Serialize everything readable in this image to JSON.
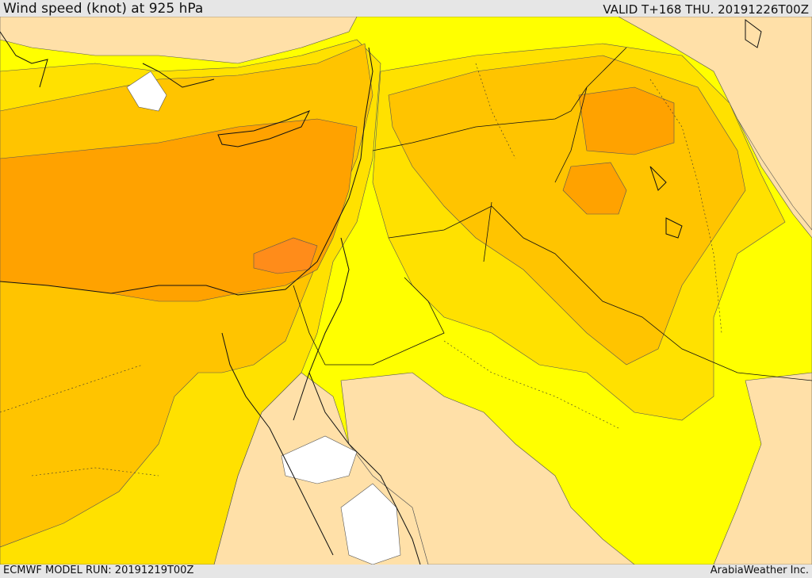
{
  "header": {
    "title": "Wind speed (knot) at 925 hPa",
    "valid_time": "VALID T+168 THU. 20191226T00Z"
  },
  "footer": {
    "model_run": "ECMWF MODEL RUN: 20191219T00Z",
    "credit": "ArabiaWeather Inc."
  },
  "map": {
    "field": "wind speed",
    "level": "925 hPa",
    "colors": {
      "calm": "#ffffff",
      "light": "#ffe0a8",
      "low": "#ffff00",
      "moderate": "#ffe100",
      "fresh": "#ffc400",
      "strong": "#ffa200",
      "very_strong": "#ff8c1a"
    }
  }
}
